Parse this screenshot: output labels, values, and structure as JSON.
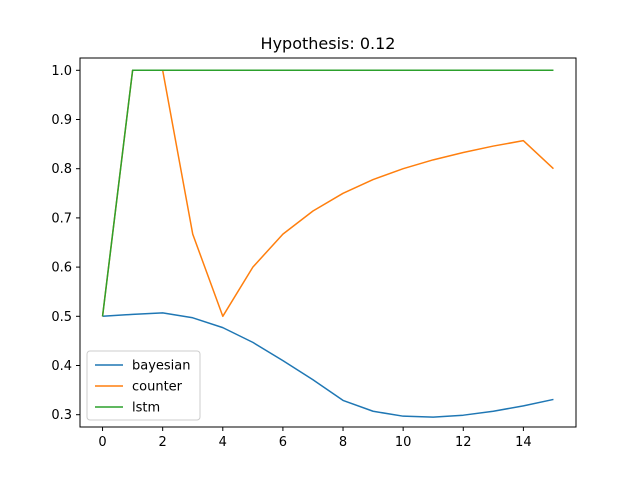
{
  "chart_data": {
    "type": "line",
    "title": "Hypothesis: 0.12",
    "xlabel": "",
    "ylabel": "",
    "xlim": [
      -0.75,
      15.75
    ],
    "ylim": [
      0.275,
      1.025
    ],
    "xticks": [
      0,
      2,
      4,
      6,
      8,
      10,
      12,
      14
    ],
    "yticks": [
      0.3,
      0.4,
      0.5,
      0.6,
      0.7,
      0.8,
      0.9,
      1.0
    ],
    "ytick_labels": [
      "0.3",
      "0.4",
      "0.5",
      "0.6",
      "0.7",
      "0.8",
      "0.9",
      "1.0"
    ],
    "grid": false,
    "legend_position": "lower-left",
    "x": [
      0,
      1,
      2,
      3,
      4,
      5,
      6,
      7,
      8,
      9,
      10,
      11,
      12,
      13,
      14,
      15
    ],
    "series": [
      {
        "name": "bayesian",
        "color": "#1f77b4",
        "values": [
          0.5,
          0.504,
          0.507,
          0.497,
          0.477,
          0.447,
          0.41,
          0.371,
          0.329,
          0.307,
          0.297,
          0.295,
          0.299,
          0.307,
          0.318,
          0.331
        ]
      },
      {
        "name": "counter",
        "color": "#ff7f0e",
        "values": [
          0.5,
          1.0,
          1.0,
          0.667,
          0.5,
          0.6,
          0.667,
          0.714,
          0.75,
          0.778,
          0.8,
          0.818,
          0.833,
          0.846,
          0.857,
          0.8
        ]
      },
      {
        "name": "lstm",
        "color": "#2ca02c",
        "values": [
          0.5,
          1.0,
          1.0,
          1.0,
          1.0,
          1.0,
          1.0,
          1.0,
          1.0,
          1.0,
          1.0,
          1.0,
          1.0,
          1.0,
          1.0,
          1.0
        ]
      }
    ]
  }
}
